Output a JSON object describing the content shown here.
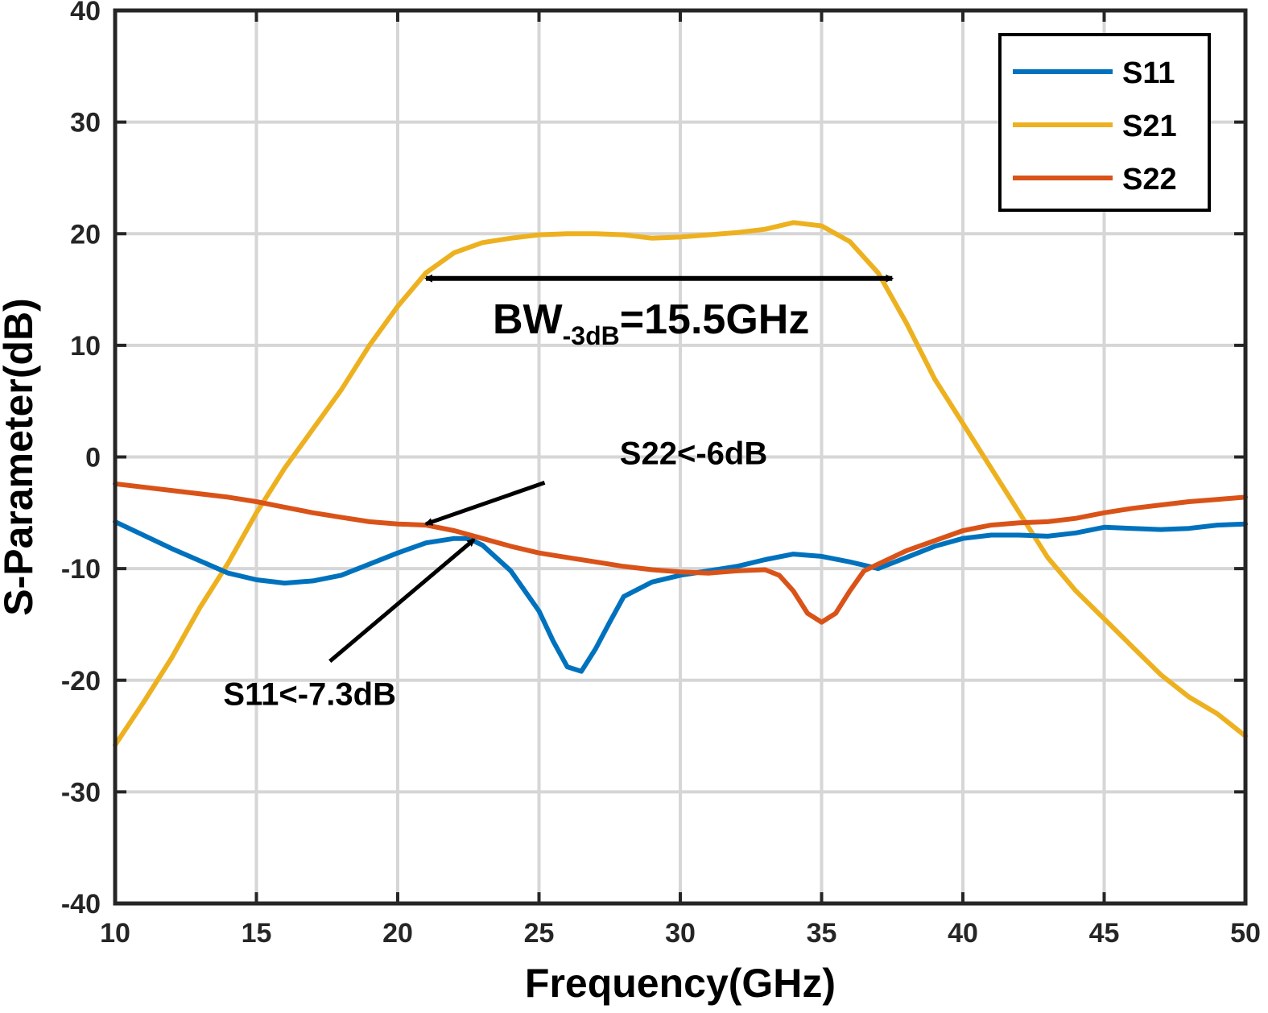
{
  "chart_data": {
    "type": "line",
    "xlabel": "Frequency(GHz)",
    "ylabel": "S-Parameter(dB)",
    "xlim": [
      10,
      50
    ],
    "ylim": [
      -40,
      40
    ],
    "xticks": [
      10,
      15,
      20,
      25,
      30,
      35,
      40,
      45,
      50
    ],
    "yticks": [
      40,
      30,
      20,
      10,
      0,
      -10,
      -20,
      -30,
      -40
    ],
    "grid": true,
    "legend_position": "top-right",
    "series": [
      {
        "name": "S11",
        "color": "#0072BD",
        "x": [
          10,
          12,
          14,
          15,
          16,
          17,
          18,
          19,
          20,
          21,
          22,
          22.5,
          23,
          24,
          25,
          25.5,
          26,
          26.5,
          27,
          27.5,
          28,
          29,
          30,
          31,
          32,
          33,
          34,
          35,
          36,
          37,
          38,
          39,
          40,
          41,
          42,
          43,
          44,
          45,
          46,
          47,
          48,
          49,
          50
        ],
        "y": [
          -5.8,
          -8.2,
          -10.4,
          -11.0,
          -11.3,
          -11.1,
          -10.6,
          -9.6,
          -8.6,
          -7.7,
          -7.3,
          -7.3,
          -7.9,
          -10.2,
          -13.8,
          -16.5,
          -18.8,
          -19.2,
          -17.2,
          -14.8,
          -12.5,
          -11.2,
          -10.6,
          -10.2,
          -9.8,
          -9.2,
          -8.7,
          -8.9,
          -9.4,
          -10.0,
          -9.0,
          -8.0,
          -7.3,
          -7.0,
          -7.0,
          -7.1,
          -6.8,
          -6.3,
          -6.4,
          -6.5,
          -6.4,
          -6.1,
          -6.0
        ]
      },
      {
        "name": "S21",
        "color": "#EDB120",
        "x": [
          10,
          11,
          12,
          13,
          14,
          15,
          16,
          17,
          18,
          19,
          20,
          21,
          22,
          23,
          24,
          25,
          26,
          27,
          28,
          29,
          30,
          31,
          32,
          33,
          34,
          35,
          36,
          37,
          38,
          39,
          40,
          41,
          42,
          43,
          44,
          45,
          46,
          47,
          48,
          49,
          50
        ],
        "y": [
          -25.8,
          -22.0,
          -18.0,
          -13.5,
          -9.5,
          -5.0,
          -1.0,
          2.5,
          6.0,
          10.0,
          13.5,
          16.5,
          18.3,
          19.2,
          19.6,
          19.9,
          20.0,
          20.0,
          19.9,
          19.6,
          19.7,
          19.9,
          20.1,
          20.4,
          21.0,
          20.7,
          19.3,
          16.5,
          12.0,
          7.0,
          3.0,
          -1.0,
          -5.0,
          -9.0,
          -12.0,
          -14.5,
          -17.0,
          -19.5,
          -21.5,
          -23.0,
          -25.0
        ]
      },
      {
        "name": "S22",
        "color": "#D95319",
        "x": [
          10,
          12,
          14,
          15,
          16,
          17,
          18,
          19,
          20,
          21,
          22,
          23,
          24,
          25,
          26,
          27,
          28,
          29,
          30,
          31,
          32,
          33,
          33.5,
          34,
          34.5,
          35,
          35.5,
          36,
          36.5,
          37,
          38,
          39,
          40,
          41,
          42,
          43,
          44,
          45,
          46,
          47,
          48,
          49,
          50
        ],
        "y": [
          -2.4,
          -3.0,
          -3.6,
          -4.0,
          -4.5,
          -5.0,
          -5.4,
          -5.8,
          -6.0,
          -6.1,
          -6.6,
          -7.3,
          -8.0,
          -8.6,
          -9.0,
          -9.4,
          -9.8,
          -10.1,
          -10.3,
          -10.4,
          -10.2,
          -10.1,
          -10.6,
          -12.0,
          -14.0,
          -14.8,
          -14.0,
          -12.0,
          -10.2,
          -9.6,
          -8.4,
          -7.5,
          -6.6,
          -6.1,
          -5.9,
          -5.8,
          -5.5,
          -5.0,
          -4.6,
          -4.3,
          -4.0,
          -3.8,
          -3.6
        ]
      }
    ],
    "annotations": {
      "bandwidth": {
        "main": "BW",
        "sub": "-3dB",
        "rest": "=15.5GHz",
        "x_start": 21,
        "x_end": 37.5,
        "y": 16
      },
      "s22_note": {
        "text": "S22<-6dB",
        "text_x": 28,
        "text_y": 0.2,
        "arrow_from_x": 25.2,
        "arrow_from_y": -2.3,
        "arrow_to_x": 21.0,
        "arrow_to_y": -6.0
      },
      "s11_note": {
        "text": "S11<-7.3dB",
        "text_x": 14,
        "text_y": -21.2,
        "arrow_from_x": 17.6,
        "arrow_from_y": -18.3,
        "arrow_to_x": 22.7,
        "arrow_to_y": -7.4
      }
    }
  }
}
